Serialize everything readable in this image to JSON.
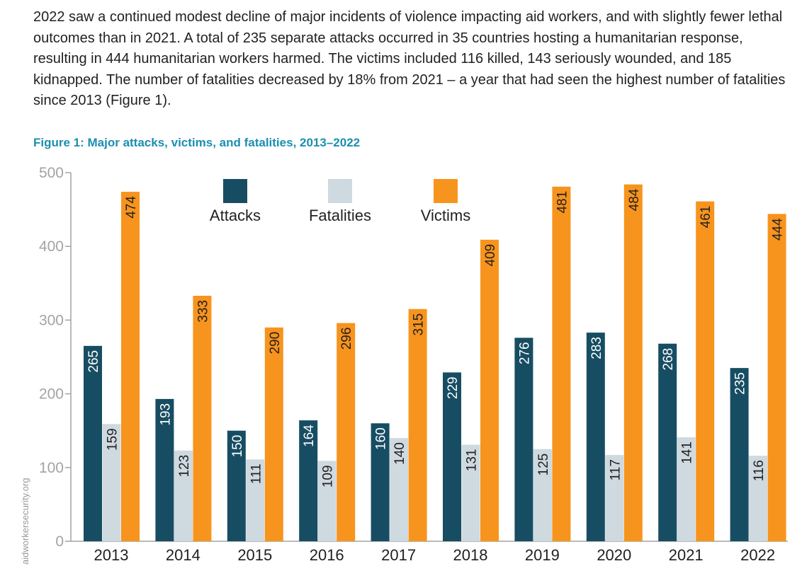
{
  "intro_text": "2022 saw a continued modest decline of major incidents of violence impacting aid workers, and with slightly fewer lethal outcomes than in 2021. A total of 235 separate attacks occurred in 35 countries hosting a humanitarian response, resulting in 444 humanitarian workers harmed. The victims included 116 killed, 143 seriously wounded, and 185 kidnapped. The number of fatalities decreased by 18% from 2021 – a year that had seen the highest number of fatalities since 2013 (Figure 1).",
  "source_text": "aidworkersecurity.org",
  "chart_data": {
    "type": "bar",
    "title": "Figure 1: Major attacks, victims, and fatalities, 2013–2022",
    "xlabel": "",
    "ylabel": "",
    "ylim": [
      0,
      500
    ],
    "yticks": [
      0,
      100,
      200,
      300,
      400,
      500
    ],
    "grid": false,
    "legend_position": "top-center",
    "categories": [
      "2013",
      "2014",
      "2015",
      "2016",
      "2017",
      "2018",
      "2019",
      "2020",
      "2021",
      "2022"
    ],
    "series": [
      {
        "name": "Attacks",
        "color": "#174d63",
        "label_color": "#ffffff",
        "values": [
          265,
          193,
          150,
          164,
          160,
          229,
          276,
          283,
          268,
          235
        ]
      },
      {
        "name": "Fatalities",
        "color": "#ced9e0",
        "label_color": "#231f20",
        "values": [
          159,
          123,
          111,
          109,
          140,
          131,
          125,
          117,
          141,
          116
        ]
      },
      {
        "name": "Victims",
        "color": "#f7941d",
        "label_color": "#231f20",
        "values": [
          474,
          333,
          290,
          296,
          315,
          409,
          481,
          484,
          461,
          444
        ]
      }
    ]
  }
}
